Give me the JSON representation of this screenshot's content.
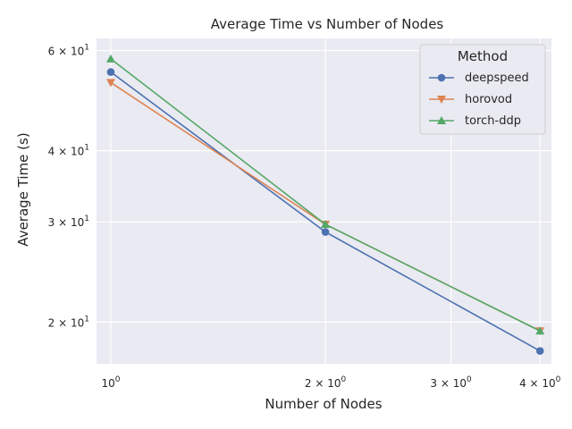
{
  "chart_data": {
    "type": "line",
    "title": "Average Time vs Number of Nodes",
    "xlabel": "Number of Nodes",
    "ylabel": "Average Time (s)",
    "x_scale": "log",
    "y_scale": "log",
    "xlim": [
      0.955,
      4.15
    ],
    "ylim": [
      16.9,
      63.0
    ],
    "grid": true,
    "x": [
      1,
      2,
      4
    ],
    "x_ticks": [
      {
        "value": 1,
        "base": "10",
        "exp": "0"
      },
      {
        "value": 2,
        "base": "2 × 10",
        "exp": "0"
      },
      {
        "value": 3,
        "base": "3 × 10",
        "exp": "0"
      },
      {
        "value": 4,
        "base": "4 × 10",
        "exp": "0"
      }
    ],
    "y_ticks": [
      {
        "value": 20,
        "base": "2 × 10",
        "exp": "1"
      },
      {
        "value": 30,
        "base": "3 × 10",
        "exp": "1"
      },
      {
        "value": 40,
        "base": "4 × 10",
        "exp": "1"
      },
      {
        "value": 60,
        "base": "6 × 10",
        "exp": "1"
      }
    ],
    "legend": {
      "title": "Method",
      "position": "top-right"
    },
    "series": [
      {
        "name": "deepspeed",
        "values": [
          55.0,
          28.8,
          17.8
        ],
        "color": "#4c72b0",
        "marker": "circle"
      },
      {
        "name": "horovod",
        "values": [
          52.7,
          29.7,
          19.3
        ],
        "color": "#dd8452",
        "marker": "triangle-down"
      },
      {
        "name": "torch-ddp",
        "values": [
          58.0,
          29.7,
          19.3
        ],
        "color": "#55a868",
        "marker": "triangle-up"
      }
    ]
  }
}
